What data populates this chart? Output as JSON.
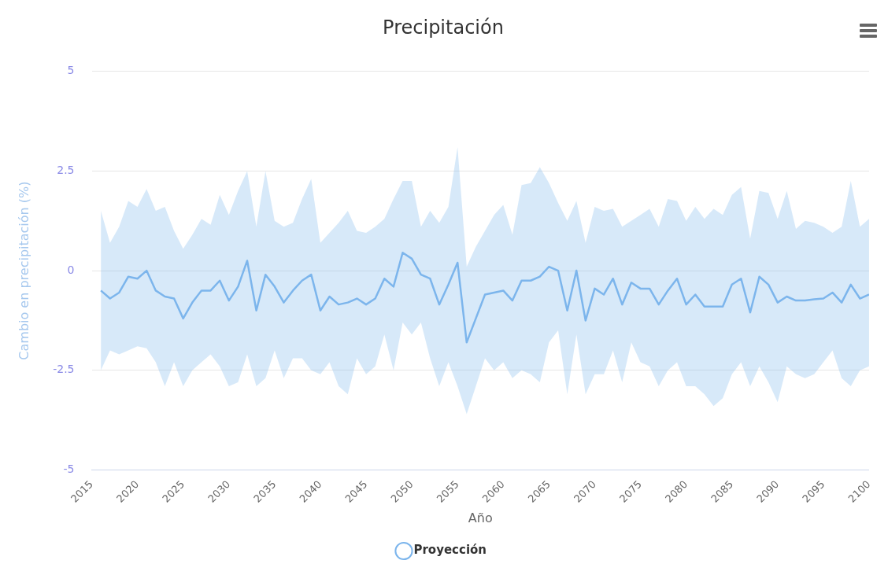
{
  "chart_data": {
    "type": "line",
    "title": "Precipitación",
    "xlabel": "Año",
    "ylabel": "Cambio en precipitación (%)",
    "x": [
      2016,
      2017,
      2018,
      2019,
      2020,
      2021,
      2022,
      2023,
      2024,
      2025,
      2026,
      2027,
      2028,
      2029,
      2030,
      2031,
      2032,
      2033,
      2034,
      2035,
      2036,
      2037,
      2038,
      2039,
      2040,
      2041,
      2042,
      2043,
      2044,
      2045,
      2046,
      2047,
      2048,
      2049,
      2050,
      2051,
      2052,
      2053,
      2054,
      2055,
      2056,
      2057,
      2058,
      2059,
      2060,
      2061,
      2062,
      2063,
      2064,
      2065,
      2066,
      2067,
      2068,
      2069,
      2070,
      2071,
      2072,
      2073,
      2074,
      2075,
      2076,
      2077,
      2078,
      2079,
      2080,
      2081,
      2082,
      2083,
      2084,
      2085,
      2086,
      2087,
      2088,
      2089,
      2090,
      2091,
      2092,
      2093,
      2094,
      2095,
      2096,
      2097,
      2098,
      2099,
      2100
    ],
    "series": [
      {
        "name": "Proyección",
        "color": "#7cb5ec",
        "values": [
          -0.5,
          -0.7,
          -0.55,
          -0.15,
          -0.2,
          0.0,
          -0.5,
          -0.65,
          -0.7,
          -1.2,
          -0.8,
          -0.5,
          -0.5,
          -0.25,
          -0.75,
          -0.4,
          0.25,
          -1.0,
          -0.1,
          -0.4,
          -0.8,
          -0.5,
          -0.25,
          -0.1,
          -1.0,
          -0.65,
          -0.85,
          -0.8,
          -0.7,
          -0.85,
          -0.7,
          -0.2,
          -0.4,
          0.45,
          0.3,
          -0.1,
          -0.2,
          -0.85,
          -0.35,
          0.2,
          -1.8,
          -1.2,
          -0.6,
          -0.55,
          -0.5,
          -0.75,
          -0.25,
          -0.25,
          -0.15,
          0.1,
          0.0,
          -1.0,
          0.0,
          -1.25,
          -0.45,
          -0.6,
          -0.2,
          -0.85,
          -0.3,
          -0.45,
          -0.45,
          -0.85,
          -0.5,
          -0.2,
          -0.85,
          -0.6,
          -0.9,
          -0.9,
          -0.9,
          -0.35,
          -0.2,
          -1.05,
          -0.15,
          -0.35,
          -0.8,
          -0.65,
          -0.75,
          -0.75,
          -0.72,
          -0.7,
          -0.55,
          -0.8,
          -0.35,
          -0.7,
          -0.6
        ],
        "upper": [
          1.5,
          0.7,
          1.1,
          1.75,
          1.6,
          2.05,
          1.5,
          1.6,
          1.0,
          0.55,
          0.9,
          1.3,
          1.15,
          1.9,
          1.4,
          2.0,
          2.5,
          1.1,
          2.5,
          1.25,
          1.1,
          1.2,
          1.8,
          2.3,
          0.7,
          0.95,
          1.2,
          1.5,
          1.0,
          0.95,
          1.1,
          1.3,
          1.8,
          2.25,
          2.25,
          1.1,
          1.5,
          1.2,
          1.6,
          3.1,
          0.1,
          0.6,
          1.0,
          1.4,
          1.65,
          0.9,
          2.15,
          2.2,
          2.6,
          2.2,
          1.7,
          1.25,
          1.75,
          0.7,
          1.6,
          1.5,
          1.55,
          1.1,
          1.25,
          1.4,
          1.55,
          1.1,
          1.8,
          1.75,
          1.25,
          1.6,
          1.3,
          1.55,
          1.4,
          1.9,
          2.1,
          0.8,
          2.0,
          1.95,
          1.3,
          2.0,
          1.05,
          1.25,
          1.2,
          1.1,
          0.95,
          1.1,
          2.25,
          1.1,
          1.3
        ],
        "lower": [
          -2.5,
          -2.0,
          -2.1,
          -2.0,
          -1.9,
          -1.95,
          -2.3,
          -2.9,
          -2.3,
          -2.9,
          -2.5,
          -2.3,
          -2.1,
          -2.4,
          -2.9,
          -2.8,
          -2.1,
          -2.9,
          -2.7,
          -2.0,
          -2.7,
          -2.2,
          -2.2,
          -2.5,
          -2.6,
          -2.3,
          -2.9,
          -3.1,
          -2.2,
          -2.6,
          -2.4,
          -1.6,
          -2.5,
          -1.3,
          -1.6,
          -1.3,
          -2.2,
          -2.9,
          -2.3,
          -2.9,
          -3.6,
          -2.9,
          -2.2,
          -2.5,
          -2.3,
          -2.7,
          -2.5,
          -2.6,
          -2.8,
          -1.8,
          -1.5,
          -3.1,
          -1.6,
          -3.1,
          -2.6,
          -2.6,
          -2.0,
          -2.8,
          -1.8,
          -2.3,
          -2.4,
          -2.9,
          -2.5,
          -2.3,
          -2.9,
          -2.9,
          -3.1,
          -3.4,
          -3.2,
          -2.6,
          -2.3,
          -2.9,
          -2.4,
          -2.8,
          -3.3,
          -2.4,
          -2.6,
          -2.7,
          -2.6,
          -2.3,
          -2.0,
          -2.7,
          -2.9,
          -2.5,
          -2.4
        ]
      }
    ],
    "xlim": [
      2015,
      2100
    ],
    "xticks": [
      2015,
      2020,
      2025,
      2030,
      2035,
      2040,
      2045,
      2050,
      2055,
      2060,
      2065,
      2070,
      2075,
      2080,
      2085,
      2090,
      2095,
      2100
    ],
    "ylim": [
      -5,
      5
    ],
    "yticks": [
      -5,
      -2.5,
      0,
      2.5,
      5
    ],
    "grid": "y",
    "legend": "bottom"
  }
}
